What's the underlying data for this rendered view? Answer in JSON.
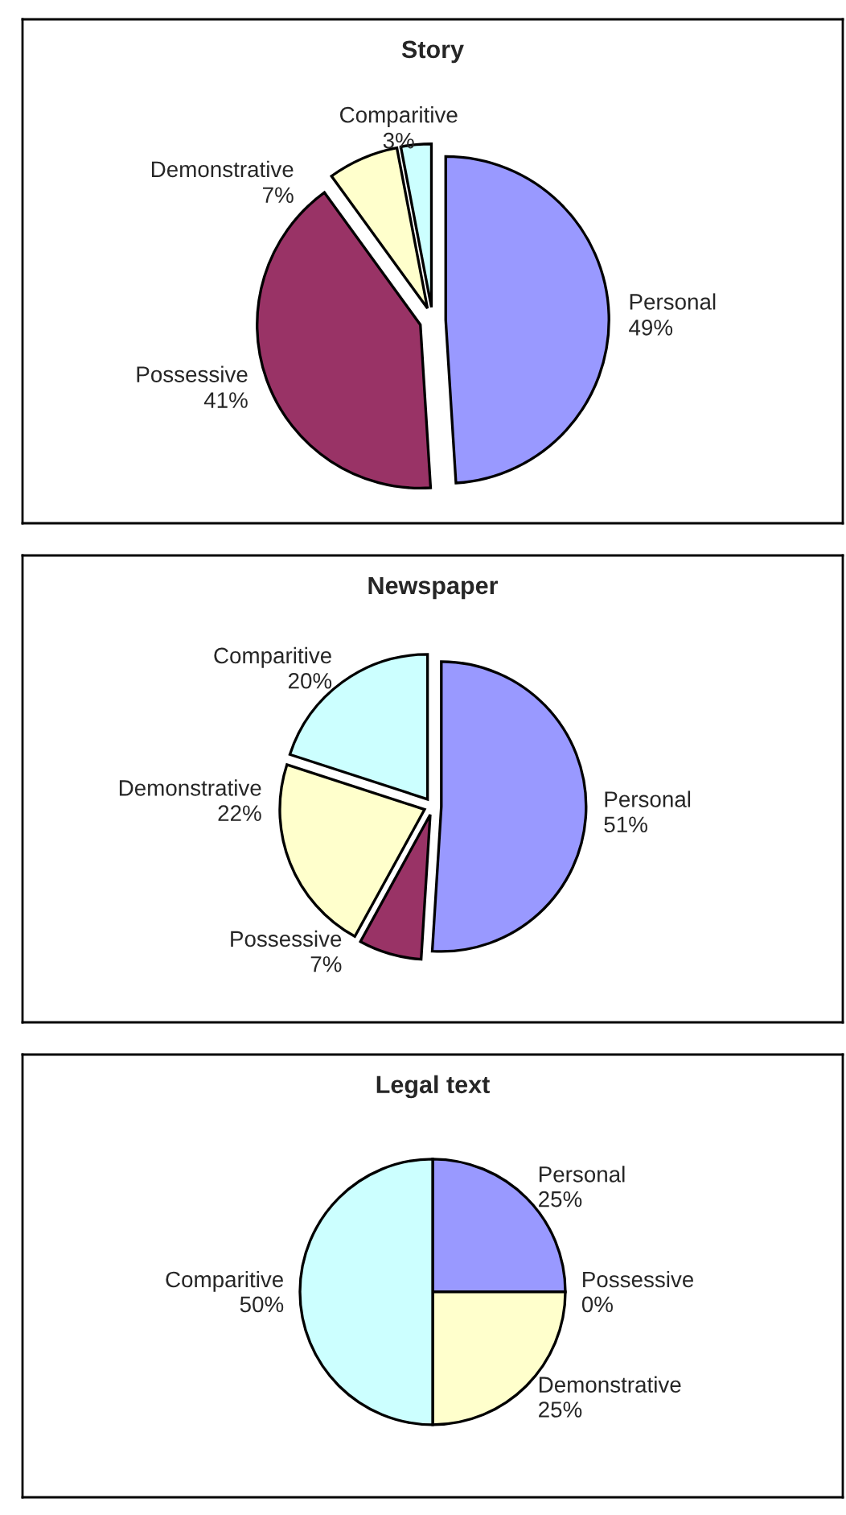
{
  "chart_data": [
    {
      "type": "pie",
      "title": "Story",
      "categories": [
        "Personal",
        "Possessive",
        "Demonstrative",
        "Comparitive"
      ],
      "values": [
        49,
        41,
        7,
        3
      ],
      "value_labels": [
        "49%",
        "41%",
        "7%",
        "3%"
      ],
      "colors": [
        "#9999ff",
        "#993366",
        "#ffffcc",
        "#ccffff"
      ]
    },
    {
      "type": "pie",
      "title": "Newspaper",
      "categories": [
        "Personal",
        "Possessive",
        "Demonstrative",
        "Comparitive"
      ],
      "values": [
        51,
        7,
        22,
        20
      ],
      "value_labels": [
        "51%",
        "7%",
        "22%",
        "20%"
      ],
      "colors": [
        "#9999ff",
        "#993366",
        "#ffffcc",
        "#ccffff"
      ]
    },
    {
      "type": "pie",
      "title": "Legal text",
      "categories": [
        "Personal",
        "Possessive",
        "Demonstrative",
        "Comparitive"
      ],
      "values": [
        25,
        0,
        25,
        50
      ],
      "value_labels": [
        "25%",
        "0%",
        "25%",
        "50%"
      ],
      "colors": [
        "#9999ff",
        "#993366",
        "#ffffcc",
        "#ccffff"
      ]
    }
  ]
}
